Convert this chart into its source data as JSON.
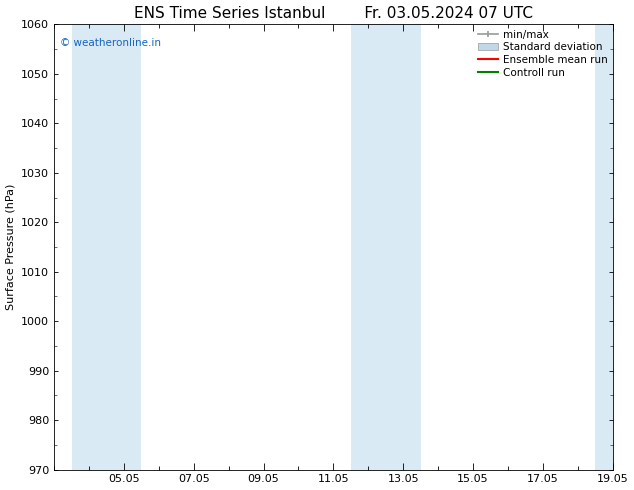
{
  "title_left": "ENS Time Series Istanbul",
  "title_right": "Fr. 03.05.2024 07 UTC",
  "ylabel": "Surface Pressure (hPa)",
  "ylim": [
    970,
    1060
  ],
  "yticks": [
    970,
    980,
    990,
    1000,
    1010,
    1020,
    1030,
    1040,
    1050,
    1060
  ],
  "xlim": [
    0,
    16
  ],
  "xtick_labels": [
    "05.05",
    "07.05",
    "09.05",
    "11.05",
    "13.05",
    "15.05",
    "17.05",
    "19.05"
  ],
  "xtick_positions": [
    2,
    4,
    6,
    8,
    10,
    12,
    14,
    16
  ],
  "shaded_bands": [
    {
      "x_start": 0.5,
      "x_end": 2.5
    },
    {
      "x_start": 8.5,
      "x_end": 10.5
    },
    {
      "x_start": 15.5,
      "x_end": 16
    }
  ],
  "shaded_color": "#daeaf5",
  "background_color": "#ffffff",
  "watermark_text": "© weatheronline.in",
  "watermark_color": "#1565c0",
  "legend_labels": [
    "min/max",
    "Standard deviation",
    "Ensemble mean run",
    "Controll run"
  ],
  "legend_colors_line": [
    "#999999",
    "#c0d8e8",
    "#ff0000",
    "#008000"
  ],
  "title_fontsize": 11,
  "ylabel_fontsize": 8,
  "tick_fontsize": 8,
  "legend_fontsize": 7.5
}
